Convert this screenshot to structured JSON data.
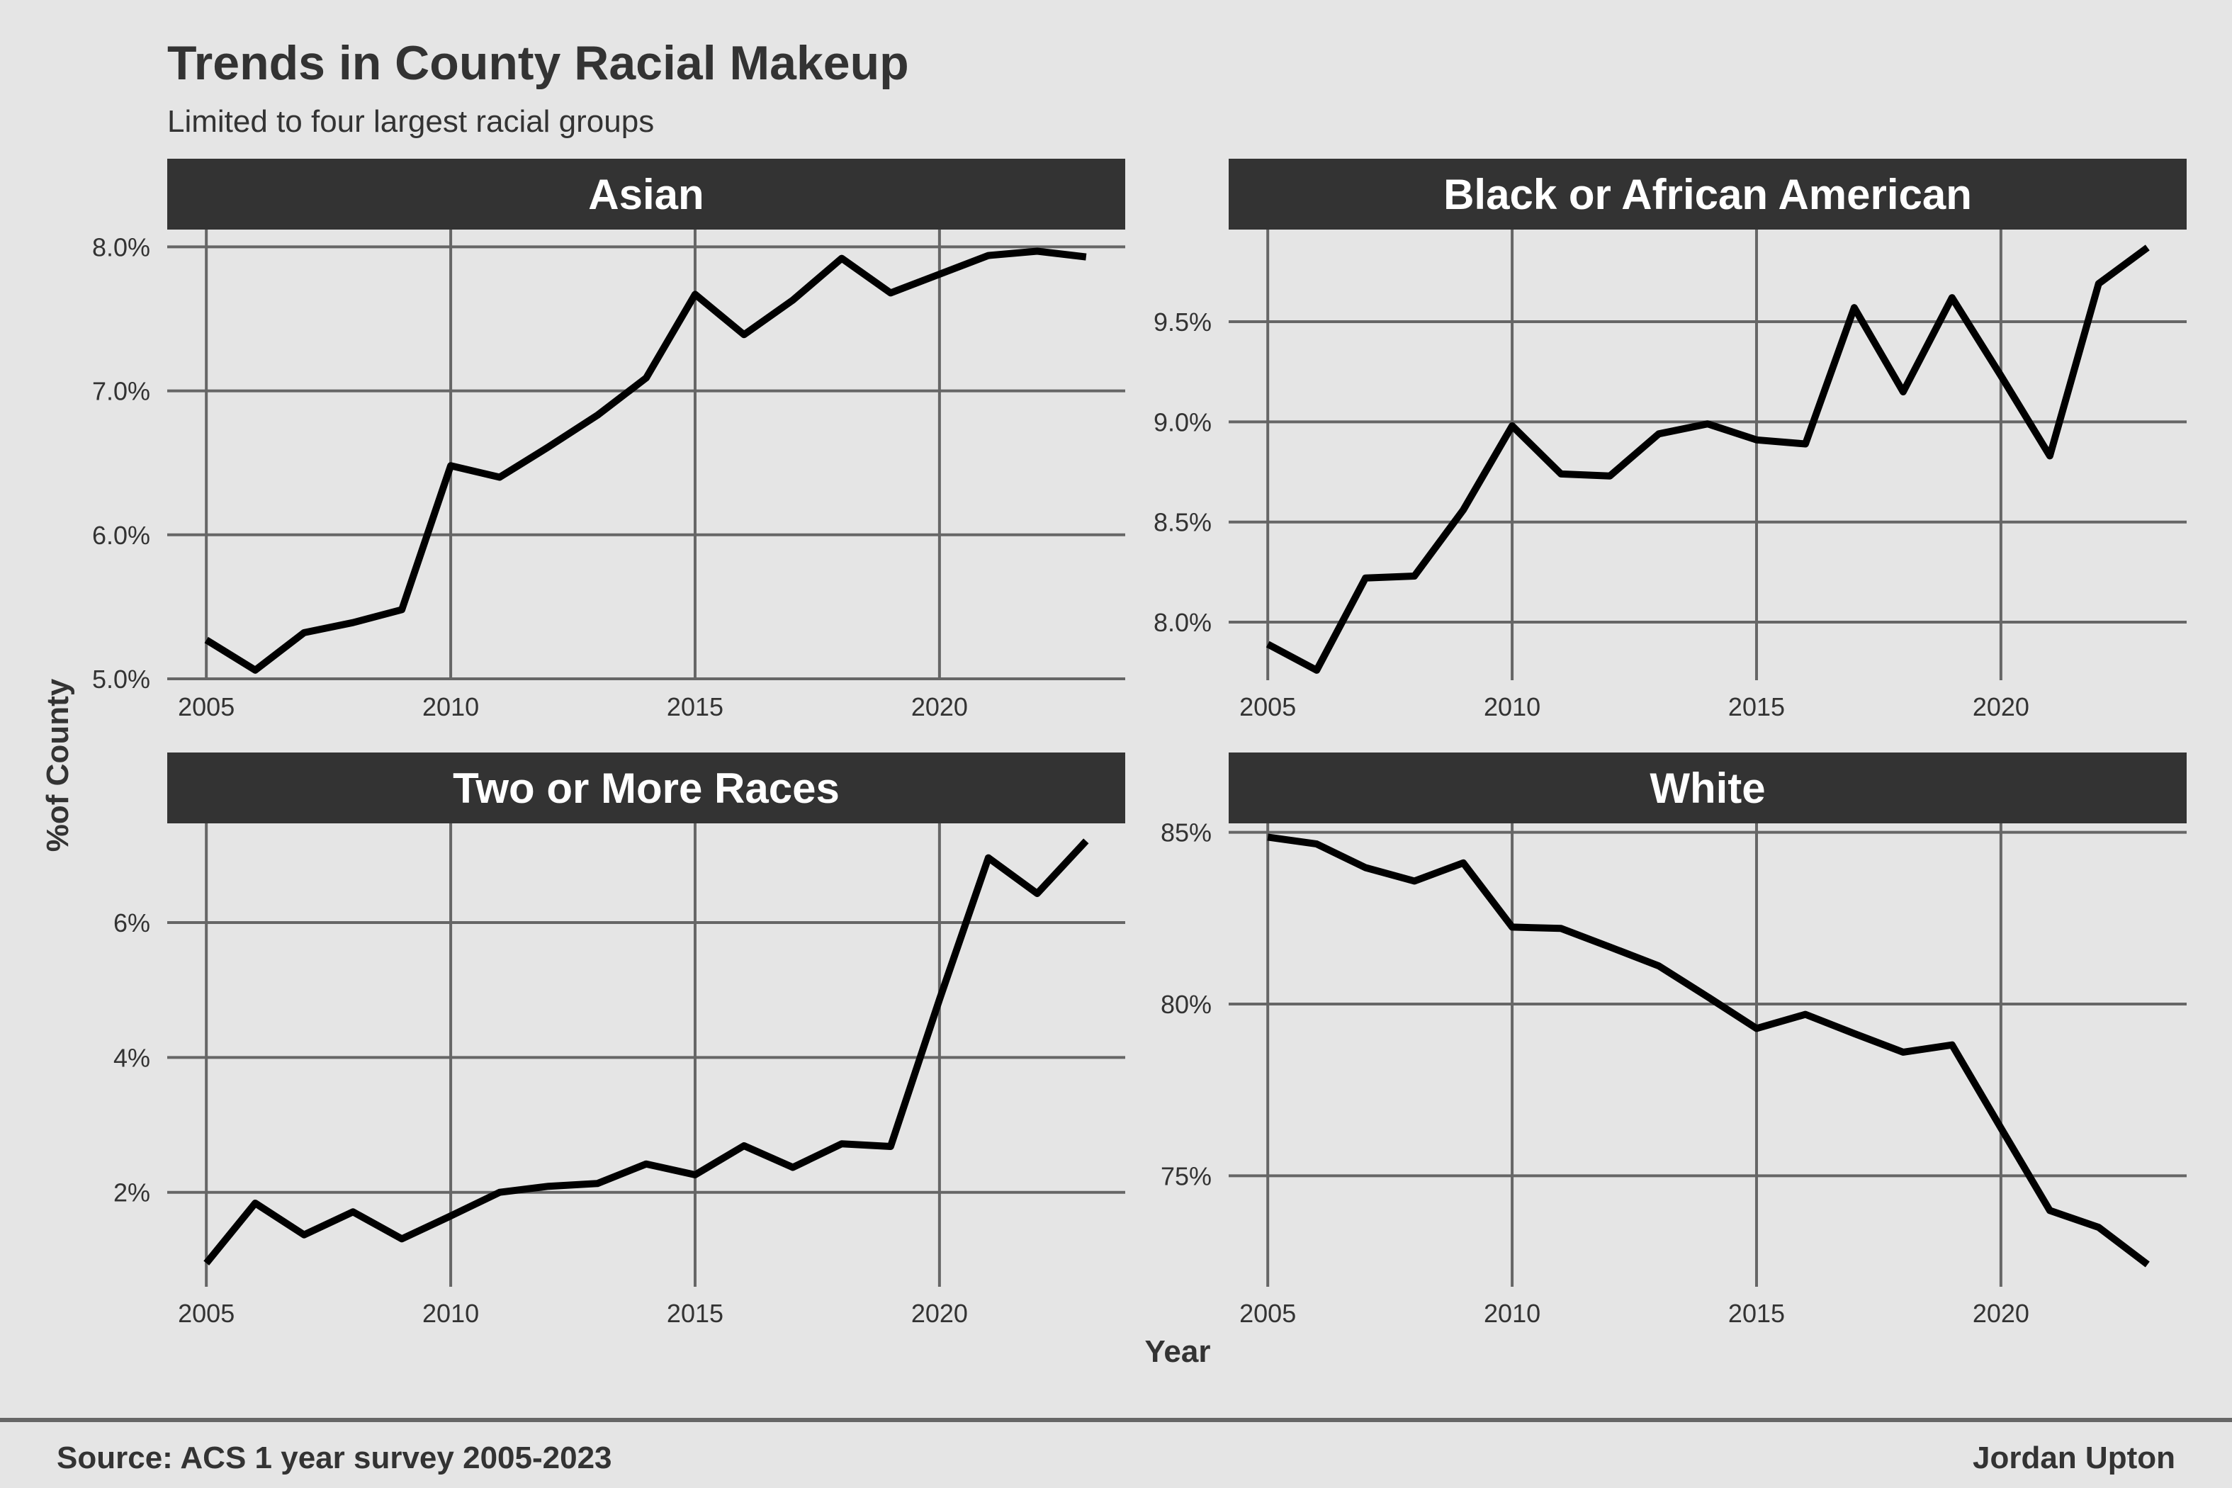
{
  "chart_data": {
    "type": "line",
    "title": "Trends in County Racial Makeup",
    "subtitle": "Limited to four largest racial groups",
    "xlabel": "Year",
    "ylabel": "%of County",
    "caption_left": "Source: ACS 1 year survey 2005-2023",
    "caption_right": "Jordan Upton",
    "grid": true,
    "line_color": "#000000",
    "strip_color": "#333333",
    "background_color": "#e5e5e5",
    "panels": [
      {
        "name": "Asian",
        "x": [
          2005,
          2006,
          2007,
          2008,
          2009,
          2010,
          2011,
          2012,
          2013,
          2014,
          2015,
          2016,
          2017,
          2018,
          2019,
          2020,
          2021,
          2022,
          2023
        ],
        "values": [
          5.27,
          5.06,
          5.32,
          5.39,
          5.48,
          6.48,
          6.4,
          6.61,
          6.83,
          7.09,
          7.67,
          7.39,
          7.63,
          7.92,
          7.68,
          7.81,
          7.94,
          7.97,
          7.93
        ],
        "xlim": [
          2004.2,
          2023.8
        ],
        "ylim": [
          4.99,
          8.12
        ],
        "xticks": [
          2005,
          2010,
          2015,
          2020
        ],
        "xtick_labels": [
          "2005",
          "2010",
          "2015",
          "2020"
        ],
        "yticks": [
          5.0,
          6.0,
          7.0,
          8.0
        ],
        "ytick_labels": [
          "5.0%",
          "6.0%",
          "7.0%",
          "8.0%"
        ]
      },
      {
        "name": "Black or African American",
        "x": [
          2005,
          2006,
          2007,
          2008,
          2009,
          2010,
          2011,
          2012,
          2013,
          2014,
          2015,
          2016,
          2017,
          2018,
          2019,
          2020,
          2021,
          2022,
          2023
        ],
        "values": [
          7.89,
          7.76,
          8.22,
          8.23,
          8.56,
          8.98,
          8.74,
          8.73,
          8.94,
          8.99,
          8.91,
          8.89,
          9.57,
          9.15,
          9.62,
          9.23,
          8.83,
          9.69,
          9.87
        ],
        "xlim": [
          2004.2,
          2023.8
        ],
        "ylim": [
          7.71,
          9.96
        ],
        "xticks": [
          2005,
          2010,
          2015,
          2020
        ],
        "xtick_labels": [
          "2005",
          "2010",
          "2015",
          "2020"
        ],
        "yticks": [
          8.0,
          8.5,
          9.0,
          9.5
        ],
        "ytick_labels": [
          "8.0%",
          "8.5%",
          "9.0%",
          "9.5%"
        ]
      },
      {
        "name": "Two or More Races",
        "x": [
          2005,
          2006,
          2007,
          2008,
          2009,
          2010,
          2011,
          2012,
          2013,
          2014,
          2015,
          2016,
          2017,
          2018,
          2019,
          2020,
          2021,
          2022,
          2023
        ],
        "values": [
          0.95,
          1.84,
          1.37,
          1.71,
          1.31,
          1.65,
          2.0,
          2.09,
          2.13,
          2.42,
          2.26,
          2.69,
          2.37,
          2.72,
          2.68,
          4.86,
          6.96,
          6.43,
          7.21
        ],
        "xlim": [
          2004.2,
          2023.8
        ],
        "ylim": [
          0.6,
          7.47
        ],
        "xticks": [
          2005,
          2010,
          2015,
          2020
        ],
        "xtick_labels": [
          "2005",
          "2010",
          "2015",
          "2020"
        ],
        "yticks": [
          2,
          4,
          6
        ],
        "ytick_labels": [
          "2%",
          "4%",
          "6%"
        ]
      },
      {
        "name": "White",
        "x": [
          2005,
          2006,
          2007,
          2008,
          2009,
          2010,
          2011,
          2012,
          2013,
          2014,
          2015,
          2016,
          2017,
          2018,
          2019,
          2020,
          2021,
          2022,
          2023
        ],
        "values": [
          84.86,
          84.66,
          83.97,
          83.58,
          84.11,
          82.24,
          82.2,
          81.66,
          81.11,
          80.21,
          79.29,
          79.7,
          79.14,
          78.6,
          78.81,
          76.39,
          73.99,
          73.5,
          72.42
        ],
        "xlim": [
          2004.2,
          2023.8
        ],
        "ylim": [
          71.77,
          85.26
        ],
        "xticks": [
          2005,
          2010,
          2015,
          2020
        ],
        "xtick_labels": [
          "2005",
          "2010",
          "2015",
          "2020"
        ],
        "yticks": [
          75,
          80,
          85
        ],
        "ytick_labels": [
          "75%",
          "80%",
          "85%"
        ]
      }
    ]
  }
}
